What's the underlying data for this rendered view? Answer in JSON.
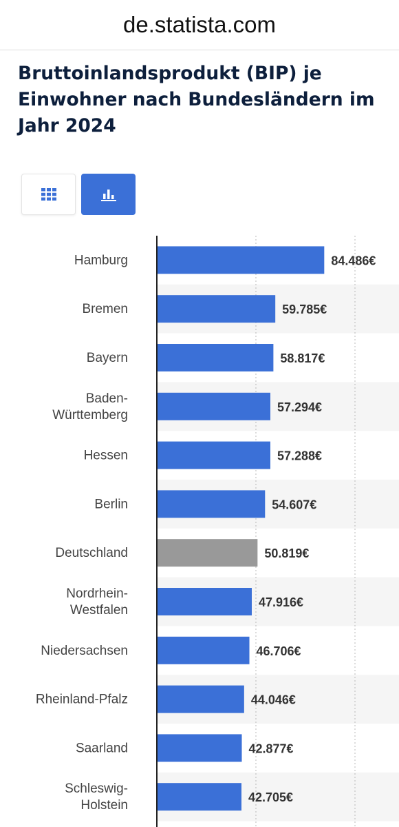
{
  "browser": {
    "url": "de.statista.com"
  },
  "page": {
    "title": "Bruttoinlandsprodukt (BIP) je Einwohner nach Bundesländern im Jahr 2024"
  },
  "view_toggle": {
    "active": "chart",
    "table_icon": "table-grid-icon",
    "chart_icon": "bar-chart-icon"
  },
  "colors": {
    "bar": "#3b70d7",
    "bar_highlight": "#999999",
    "title": "#0d1f3c",
    "label": "#444444",
    "value": "#333333",
    "stripe": "#f5f5f5"
  },
  "chart_data": {
    "type": "bar",
    "orientation": "horizontal",
    "title": "Bruttoinlandsprodukt (BIP) je Einwohner nach Bundesländern im Jahr 2024",
    "categories": [
      "Hamburg",
      "Bremen",
      "Bayern",
      "Baden-Württemberg",
      "Hessen",
      "Berlin",
      "Deutschland",
      "Nordrhein-Westfalen",
      "Niedersachsen",
      "Rheinland-Pfalz",
      "Saarland",
      "Schleswig-Holstein"
    ],
    "category_lines": [
      [
        "Hamburg"
      ],
      [
        "Bremen"
      ],
      [
        "Bayern"
      ],
      [
        "Baden-",
        "Württemberg"
      ],
      [
        "Hessen"
      ],
      [
        "Berlin"
      ],
      [
        "Deutschland"
      ],
      [
        "Nordrhein-",
        "Westfalen"
      ],
      [
        "Niedersachsen"
      ],
      [
        "Rheinland-Pfalz"
      ],
      [
        "Saarland"
      ],
      [
        "Schleswig-",
        "Holstein"
      ]
    ],
    "values": [
      84486,
      59785,
      58817,
      57294,
      57288,
      54607,
      50819,
      47916,
      46706,
      44046,
      42877,
      42705
    ],
    "value_labels": [
      "84.486€",
      "59.785€",
      "58.817€",
      "57.294€",
      "57.288€",
      "54.607€",
      "50.819€",
      "47.916€",
      "46.706€",
      "44.046€",
      "42.877€",
      "42.705€"
    ],
    "highlight": "Deutschland",
    "unit": "€",
    "xlim": [
      0,
      100000
    ],
    "gridlines": [
      50000,
      100000
    ],
    "grid": true
  }
}
